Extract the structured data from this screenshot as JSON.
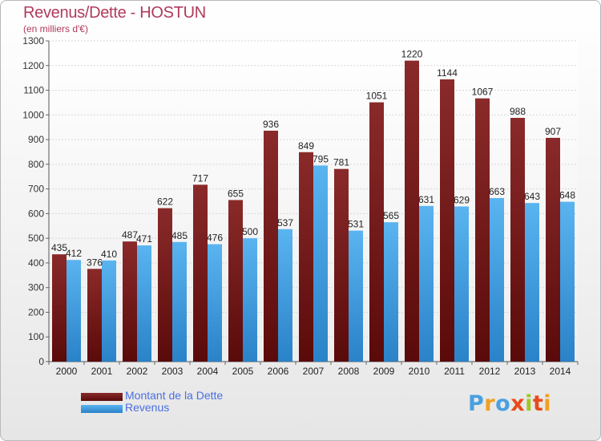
{
  "title": "Revenus/Dette - HOSTUN",
  "subtitle": "(en milliers d'€)",
  "colors": {
    "title": "#b03a5b",
    "dette": "#7a1c1c",
    "revenus": "#4aa6e8",
    "legend_text": "#4a6fe0"
  },
  "logo": {
    "letters": [
      "P",
      "r",
      "o",
      "x",
      "i",
      "t",
      "i"
    ],
    "colors": [
      "#4aa0e0",
      "#f0a020",
      "#4aa0e0",
      "#e84a1a",
      "#a0c820",
      "#e84a1a",
      "#f0a020"
    ]
  },
  "chart_data": {
    "type": "bar",
    "categories": [
      "2000",
      "2001",
      "2002",
      "2003",
      "2004",
      "2005",
      "2006",
      "2007",
      "2008",
      "2009",
      "2010",
      "2011",
      "2012",
      "2013",
      "2014"
    ],
    "series": [
      {
        "name": "Montant de la Dette",
        "values": [
          435,
          376,
          487,
          622,
          717,
          655,
          936,
          849,
          781,
          1051,
          1220,
          1144,
          1067,
          988,
          907
        ]
      },
      {
        "name": "Revenus",
        "values": [
          412,
          410,
          471,
          485,
          476,
          500,
          537,
          795,
          531,
          565,
          631,
          629,
          663,
          643,
          648
        ]
      }
    ],
    "ylim": [
      0,
      1300
    ],
    "yticks": [
      "0",
      "100",
      "200",
      "300",
      "400",
      "500",
      "600",
      "700",
      "800",
      "900",
      "1000",
      "1100",
      "1200",
      "1300"
    ],
    "grid": true,
    "legend_position": "bottom-left"
  }
}
